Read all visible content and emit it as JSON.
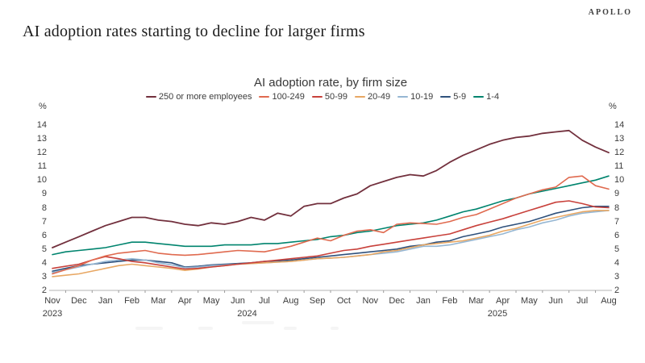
{
  "header": {
    "logo": "APOLLO",
    "title": "AI adoption rates starting to decline for larger firms"
  },
  "chart_data": {
    "type": "line",
    "title": "AI adoption rate, by firm size",
    "unit_left": "%",
    "unit_right": "%",
    "ylim": [
      2,
      14
    ],
    "yticks": [
      2,
      3,
      4,
      5,
      6,
      7,
      8,
      9,
      10,
      11,
      12,
      13,
      14
    ],
    "grid": false,
    "legend_position": "top",
    "x_months": [
      "Nov",
      "Dec",
      "Jan",
      "Feb",
      "Mar",
      "Apr",
      "May",
      "Jun",
      "Jul",
      "Aug",
      "Sep",
      "Oct",
      "Nov",
      "Dec",
      "Jan",
      "Feb",
      "Mar",
      "Apr",
      "May",
      "Jun",
      "Jul",
      "Aug"
    ],
    "x_years": [
      {
        "label": "2023",
        "month_index": 0
      },
      {
        "label": "2024",
        "month_index": 7.35
      },
      {
        "label": "2025",
        "month_index": 16.8
      }
    ],
    "x_note": "biweekly observations, Nov 2023 - Aug 2025",
    "series": [
      {
        "name": "250 or more employees",
        "color": "#72303d",
        "values": [
          5.1,
          5.5,
          5.9,
          6.3,
          6.7,
          7.0,
          7.3,
          7.3,
          7.1,
          7.0,
          6.8,
          6.7,
          6.9,
          6.8,
          7.0,
          7.3,
          7.1,
          7.6,
          7.4,
          8.1,
          8.3,
          8.3,
          8.7,
          9.0,
          9.6,
          9.9,
          10.2,
          10.4,
          10.3,
          10.7,
          11.3,
          11.8,
          12.2,
          12.6,
          12.9,
          13.1,
          13.2,
          13.4,
          13.5,
          13.6,
          12.9,
          12.4,
          12.0
        ]
      },
      {
        "name": "100-249",
        "color": "#e06a4f",
        "values": [
          3.2,
          3.5,
          3.8,
          4.2,
          4.5,
          4.7,
          4.8,
          4.9,
          4.7,
          4.6,
          4.55,
          4.6,
          4.7,
          4.8,
          4.9,
          4.85,
          4.8,
          5.0,
          5.2,
          5.5,
          5.8,
          5.6,
          6.0,
          6.3,
          6.4,
          6.2,
          6.8,
          6.9,
          6.85,
          6.8,
          7.0,
          7.3,
          7.5,
          7.9,
          8.3,
          8.7,
          9.0,
          9.3,
          9.5,
          10.2,
          10.3,
          9.6,
          9.35
        ]
      },
      {
        "name": "50-99",
        "color": "#c8413b",
        "values": [
          3.6,
          3.75,
          3.9,
          4.2,
          4.45,
          4.3,
          4.1,
          4.0,
          3.85,
          3.7,
          3.55,
          3.6,
          3.7,
          3.8,
          3.9,
          4.0,
          4.1,
          4.2,
          4.3,
          4.4,
          4.5,
          4.7,
          4.9,
          5.0,
          5.2,
          5.35,
          5.5,
          5.65,
          5.8,
          5.95,
          6.1,
          6.4,
          6.7,
          6.95,
          7.2,
          7.5,
          7.8,
          8.1,
          8.4,
          8.5,
          8.3,
          8.05,
          8.0
        ]
      },
      {
        "name": "20-49",
        "color": "#e8a763",
        "values": [
          3.0,
          3.1,
          3.2,
          3.4,
          3.6,
          3.8,
          3.9,
          3.8,
          3.7,
          3.6,
          3.45,
          3.55,
          3.7,
          3.8,
          3.9,
          3.95,
          4.0,
          4.05,
          4.1,
          4.2,
          4.3,
          4.35,
          4.4,
          4.5,
          4.6,
          4.8,
          4.9,
          5.1,
          5.3,
          5.4,
          5.5,
          5.6,
          5.8,
          6.0,
          6.3,
          6.5,
          6.8,
          7.1,
          7.3,
          7.5,
          7.7,
          7.8,
          7.8
        ]
      },
      {
        "name": "10-19",
        "color": "#96b7d3",
        "values": [
          3.3,
          3.5,
          3.7,
          3.9,
          4.1,
          4.2,
          4.3,
          4.2,
          4.0,
          3.85,
          3.65,
          3.7,
          3.8,
          3.85,
          3.9,
          3.95,
          4.0,
          4.05,
          4.1,
          4.2,
          4.3,
          4.35,
          4.4,
          4.5,
          4.6,
          4.7,
          4.8,
          5.0,
          5.2,
          5.2,
          5.3,
          5.5,
          5.7,
          5.9,
          6.1,
          6.4,
          6.6,
          6.9,
          7.1,
          7.4,
          7.6,
          7.7,
          7.8
        ]
      },
      {
        "name": "5-9",
        "color": "#2f517c",
        "values": [
          3.4,
          3.6,
          3.8,
          3.9,
          4.0,
          4.1,
          4.2,
          4.2,
          4.1,
          4.0,
          3.7,
          3.75,
          3.85,
          3.9,
          3.95,
          4.0,
          4.1,
          4.15,
          4.2,
          4.3,
          4.4,
          4.5,
          4.6,
          4.7,
          4.8,
          4.9,
          5.0,
          5.2,
          5.3,
          5.5,
          5.6,
          5.9,
          6.1,
          6.3,
          6.6,
          6.8,
          7.0,
          7.3,
          7.6,
          7.8,
          8.0,
          8.1,
          8.1
        ]
      },
      {
        "name": "1-4",
        "color": "#00846e",
        "values": [
          4.6,
          4.8,
          4.9,
          5.0,
          5.1,
          5.3,
          5.5,
          5.5,
          5.4,
          5.3,
          5.2,
          5.2,
          5.2,
          5.3,
          5.3,
          5.3,
          5.4,
          5.4,
          5.5,
          5.6,
          5.7,
          5.9,
          6.0,
          6.2,
          6.3,
          6.5,
          6.7,
          6.8,
          6.9,
          7.1,
          7.4,
          7.7,
          7.9,
          8.2,
          8.5,
          8.7,
          9.0,
          9.2,
          9.4,
          9.6,
          9.8,
          10.0,
          10.3
        ]
      }
    ]
  }
}
